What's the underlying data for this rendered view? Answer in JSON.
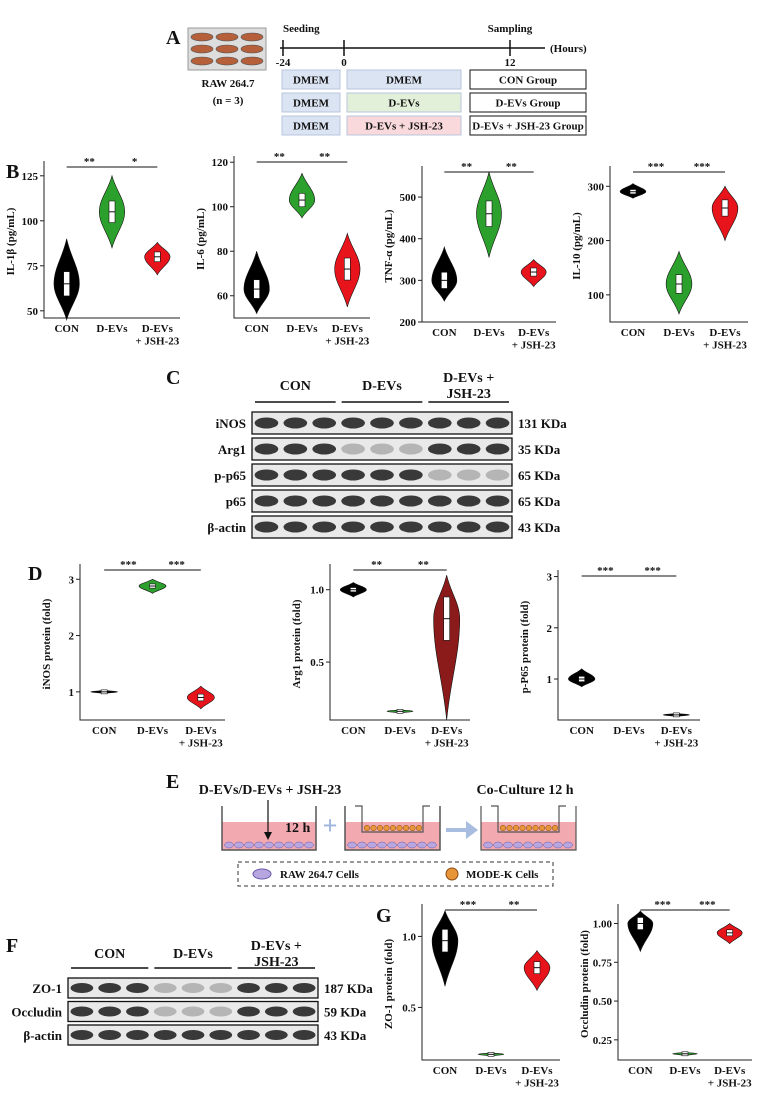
{
  "panel_labels": [
    "A",
    "B",
    "C",
    "D",
    "E",
    "F",
    "G"
  ],
  "timeline": {
    "events": [
      "Seeding",
      "Sampling"
    ],
    "ticks": [
      "-24",
      "0",
      "12"
    ],
    "unit": "(Hours)",
    "cells": "RAW 264.7",
    "n": "(n = 3)",
    "rows": [
      [
        "DMEM",
        "DMEM",
        "CON Group"
      ],
      [
        "DMEM",
        "D-EVs",
        "D-EVs Group"
      ],
      [
        "DMEM",
        "D-EVs + JSH-23",
        "D-EVs + JSH-23 Group"
      ]
    ]
  },
  "blot_c": {
    "groups": [
      "CON",
      "D-EVs",
      "D-EVs +\nJSH-23"
    ],
    "rows": [
      {
        "protein": "iNOS",
        "size": "131 KDa"
      },
      {
        "protein": "Arg1",
        "size": "35 KDa"
      },
      {
        "protein": "p-p65",
        "size": "65 KDa"
      },
      {
        "protein": "p65",
        "size": "65 KDa"
      },
      {
        "protein": "β-actin",
        "size": "43 KDa"
      }
    ]
  },
  "coculture": {
    "treatment": "D-EVs/D-EVs + JSH-23",
    "time": "12 h",
    "step": "Co-Culture 12 h",
    "legend": [
      "RAW 264.7 Cells",
      "MODE-K Cells"
    ]
  },
  "blot_f": {
    "groups": [
      "CON",
      "D-EVs",
      "D-EVs +\nJSH-23"
    ],
    "rows": [
      {
        "protein": "ZO-1",
        "size": "187 KDa"
      },
      {
        "protein": "Occludin",
        "size": "59 KDa"
      },
      {
        "protein": "β-actin",
        "size": "43 KDa"
      }
    ]
  },
  "chart_data": [
    {
      "type": "violin",
      "y_label": "IL-1β (pg/mL)",
      "categories": [
        "CON",
        "D-EVs",
        "D-EVs\n+ JSH-23"
      ],
      "colors": [
        "#000000",
        "#2ca02c",
        "#e8141c"
      ],
      "values": [
        65,
        105,
        80
      ],
      "ranges": [
        [
          45,
          90
        ],
        [
          85,
          125
        ],
        [
          70,
          88
        ]
      ],
      "ylim": [
        46,
        131
      ],
      "yticks": [
        50,
        75,
        100,
        125
      ],
      "significance": [
        "**",
        "*"
      ]
    },
    {
      "type": "violin",
      "y_label": "IL-6 (pg/mL)",
      "categories": [
        "CON",
        "D-EVs",
        "D-EVs\n+ JSH-23"
      ],
      "colors": [
        "#000000",
        "#2ca02c",
        "#e8141c"
      ],
      "values": [
        63,
        103,
        72
      ],
      "ranges": [
        [
          52,
          80
        ],
        [
          95,
          115
        ],
        [
          55,
          88
        ]
      ],
      "ylim": [
        50,
        121
      ],
      "yticks": [
        60,
        80,
        100,
        120
      ],
      "significance": [
        "**",
        "**"
      ]
    },
    {
      "type": "violin",
      "y_label": "TNF-α (pg/mL)",
      "categories": [
        "CON",
        "D-EVs",
        "D-EVs\n+ JSH-23"
      ],
      "colors": [
        "#000000",
        "#2ca02c",
        "#e8141c"
      ],
      "values": [
        300,
        460,
        320
      ],
      "ranges": [
        [
          250,
          380
        ],
        [
          355,
          560
        ],
        [
          285,
          350
        ]
      ],
      "ylim": [
        200,
        565
      ],
      "yticks": [
        200,
        300,
        400,
        500
      ],
      "significance": [
        "**",
        "**"
      ]
    },
    {
      "type": "violin",
      "y_label": "IL-10 (pg/mL)",
      "categories": [
        "CON",
        "D-EVs",
        "D-EVs\n+ JSH-23"
      ],
      "colors": [
        "#000000",
        "#2ca02c",
        "#e8141c"
      ],
      "values": [
        290,
        120,
        260
      ],
      "ranges": [
        [
          278,
          305
        ],
        [
          65,
          180
        ],
        [
          200,
          300
        ]
      ],
      "ylim": [
        50,
        330
      ],
      "yticks": [
        100,
        200,
        300
      ],
      "significance": [
        "***",
        "***"
      ]
    },
    {
      "type": "violin",
      "y_label": "iNOS protein (fold)",
      "categories": [
        "CON",
        "D-EVs",
        "D-EVs\n+ JSH-23"
      ],
      "colors": [
        "#000000",
        "#2ca02c",
        "#e8141c"
      ],
      "values": [
        1.0,
        2.88,
        0.9
      ],
      "ranges": [
        [
          0.98,
          1.02
        ],
        [
          2.75,
          3.0
        ],
        [
          0.7,
          1.1
        ]
      ],
      "ylim": [
        0.5,
        3.2
      ],
      "yticks": [
        1,
        2,
        3
      ],
      "significance": [
        "***",
        "***"
      ]
    },
    {
      "type": "violin",
      "y_label": "Arg1 protein (fold)",
      "categories": [
        "CON",
        "D-EVs",
        "D-EVs\n+ JSH-23"
      ],
      "colors": [
        "#000000",
        "#2ca02c",
        "#8b1a1a"
      ],
      "values": [
        1.0,
        0.16,
        0.8
      ],
      "ranges": [
        [
          0.95,
          1.05
        ],
        [
          0.15,
          0.17
        ],
        [
          0.1,
          1.1
        ]
      ],
      "ylim": [
        0.1,
        1.15
      ],
      "yticks": [
        0.5,
        {
          "value": 1.0,
          "label": "1.0"
        }
      ],
      "significance": [
        "**",
        "**"
      ]
    },
    {
      "type": "violin",
      "y_label": "p-P65 protein (fold)",
      "categories": [
        "CON",
        "D-EVs",
        "D-EVs\n+ JSH-23"
      ],
      "colors": [
        "#000000",
        "#2ca02c",
        "#000000"
      ],
      "values": [
        1.0,
        null,
        0.3
      ],
      "ranges": [
        [
          0.85,
          1.2
        ],
        null,
        [
          0.29,
          0.31
        ]
      ],
      "ylim": [
        0.2,
        3.05
      ],
      "yticks": [
        1,
        2,
        3
      ],
      "significance": [
        "***",
        "***"
      ]
    },
    {
      "type": "violin",
      "y_label": "ZO-1 protein (fold)",
      "categories": [
        "CON",
        "D-EVs",
        "D-EVs\n+ JSH-23"
      ],
      "colors": [
        "#000000",
        "#2ca02c",
        "#e8141c"
      ],
      "values": [
        0.97,
        0.17,
        0.78
      ],
      "ranges": [
        [
          0.65,
          1.18
        ],
        [
          0.16,
          0.18
        ],
        [
          0.62,
          0.9
        ]
      ],
      "ylim": [
        0.13,
        1.2
      ],
      "yticks": [
        0.5,
        {
          "value": 1.0,
          "label": "1.0"
        }
      ],
      "significance": [
        "***",
        "**"
      ]
    },
    {
      "type": "violin",
      "y_label": "Occludin protein (fold)",
      "categories": [
        "CON",
        "D-EVs",
        "D-EVs\n+ JSH-23"
      ],
      "colors": [
        "#000000",
        "#2ca02c",
        "#e8141c"
      ],
      "values": [
        1.0,
        0.16,
        0.94
      ],
      "ranges": [
        [
          0.82,
          1.08
        ],
        [
          0.15,
          0.17
        ],
        [
          0.87,
          1.0
        ]
      ],
      "ylim": [
        0.12,
        1.1
      ],
      "yticks": [
        {
          "value": 0.25,
          "label": "0.25"
        },
        {
          "value": 0.5,
          "label": "0.50"
        },
        {
          "value": 0.75,
          "label": "0.75"
        },
        {
          "value": 1.0,
          "label": "1.00"
        }
      ],
      "significance": [
        "***",
        "***"
      ]
    }
  ]
}
